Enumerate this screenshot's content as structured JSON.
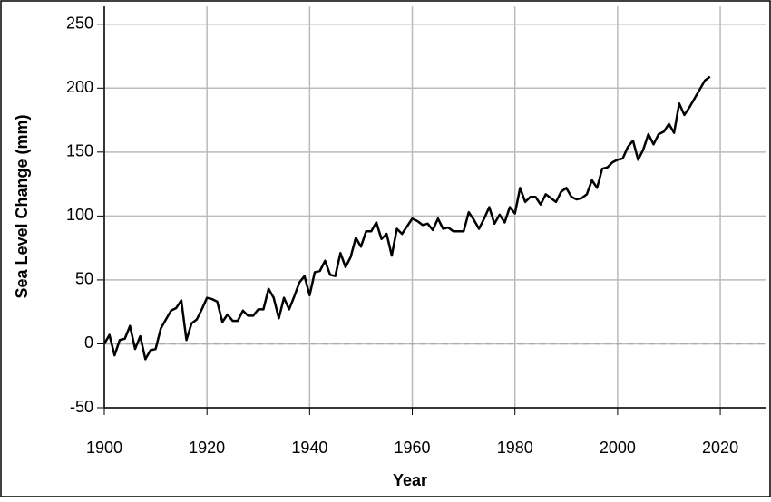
{
  "chart_data": {
    "type": "line",
    "xlabel": "Year",
    "ylabel": "Sea Level Change (mm)",
    "x": [
      1900,
      1901,
      1902,
      1903,
      1904,
      1905,
      1906,
      1907,
      1908,
      1909,
      1910,
      1911,
      1912,
      1913,
      1914,
      1915,
      1916,
      1917,
      1918,
      1919,
      1920,
      1921,
      1922,
      1923,
      1924,
      1925,
      1926,
      1927,
      1928,
      1929,
      1930,
      1931,
      1932,
      1933,
      1934,
      1935,
      1936,
      1937,
      1938,
      1939,
      1940,
      1941,
      1942,
      1943,
      1944,
      1945,
      1946,
      1947,
      1948,
      1949,
      1950,
      1951,
      1952,
      1953,
      1954,
      1955,
      1956,
      1957,
      1958,
      1959,
      1960,
      1961,
      1962,
      1963,
      1964,
      1965,
      1966,
      1967,
      1968,
      1969,
      1970,
      1971,
      1972,
      1973,
      1974,
      1975,
      1976,
      1977,
      1978,
      1979,
      1980,
      1981,
      1982,
      1983,
      1984,
      1985,
      1986,
      1987,
      1988,
      1989,
      1990,
      1991,
      1992,
      1993,
      1994,
      1995,
      1996,
      1997,
      1998,
      1999,
      2000,
      2001,
      2002,
      2003,
      2004,
      2005,
      2006,
      2007,
      2008,
      2009,
      2010,
      2011,
      2012,
      2013,
      2014,
      2015,
      2016,
      2017,
      2018
    ],
    "values": [
      0,
      7,
      -9,
      3,
      4,
      14,
      -4,
      6,
      -12,
      -5,
      -4,
      12,
      19,
      26,
      28,
      34,
      3,
      16,
      19,
      27,
      36,
      35,
      33,
      17,
      23,
      18,
      18,
      26,
      22,
      22,
      27,
      27,
      43,
      36,
      20,
      36,
      27,
      37,
      48,
      53,
      38,
      56,
      57,
      65,
      54,
      53,
      71,
      60,
      68,
      83,
      76,
      88,
      88,
      95,
      82,
      86,
      69,
      90,
      86,
      92,
      98,
      96,
      93,
      94,
      89,
      98,
      90,
      91,
      88,
      88,
      88,
      103,
      97,
      90,
      98,
      107,
      94,
      101,
      95,
      107,
      102,
      122,
      111,
      115,
      115,
      109,
      117,
      114,
      111,
      119,
      122,
      115,
      113,
      114,
      117,
      128,
      122,
      137,
      138,
      142,
      144,
      145,
      154,
      159,
      144,
      152,
      164,
      156,
      164,
      166,
      172,
      165,
      188,
      179,
      185,
      192,
      199,
      206,
      209
    ],
    "color": "#000000",
    "xlim": [
      1900,
      2029
    ],
    "ylim": [
      -50,
      264
    ],
    "xticks": [
      1900,
      1920,
      1940,
      1960,
      1980,
      2000,
      2020
    ],
    "yticks": [
      -50,
      0,
      50,
      100,
      150,
      200,
      250
    ],
    "grid": true,
    "hline": 0
  }
}
